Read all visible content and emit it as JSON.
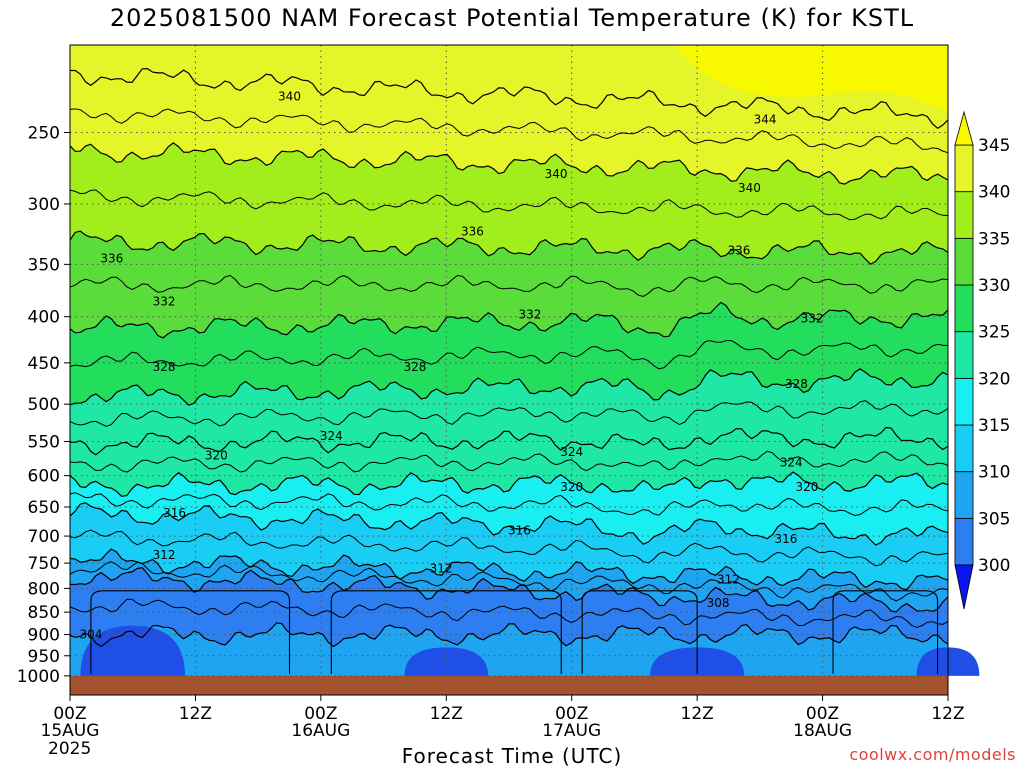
{
  "title": "2025081500 NAM Forecast Potential Temperature (K) for KSTL",
  "xlabel": "Forecast Time (UTC)",
  "credit": "coolwx.com/models",
  "year_label": "2025",
  "chart_data": {
    "type": "heatmap",
    "title": "2025081500 NAM Forecast Potential Temperature (K) for KSTL",
    "xlabel": "Forecast Time (UTC)",
    "ylabel": "",
    "x_hours_range": [
      0,
      84
    ],
    "y_pressure_range": [
      1050,
      200
    ],
    "y_scale": "log",
    "x_ticks": [
      {
        "hour": 0,
        "line1": "00Z",
        "line2": "15AUG"
      },
      {
        "hour": 12,
        "line1": "12Z",
        "line2": ""
      },
      {
        "hour": 24,
        "line1": "00Z",
        "line2": "16AUG"
      },
      {
        "hour": 36,
        "line1": "12Z",
        "line2": ""
      },
      {
        "hour": 48,
        "line1": "00Z",
        "line2": "17AUG"
      },
      {
        "hour": 60,
        "line1": "12Z",
        "line2": ""
      },
      {
        "hour": 72,
        "line1": "00Z",
        "line2": "18AUG"
      },
      {
        "hour": 84,
        "line1": "12Z",
        "line2": ""
      }
    ],
    "y_ticks": [
      250,
      300,
      350,
      400,
      450,
      500,
      550,
      600,
      650,
      700,
      750,
      800,
      850,
      900,
      950,
      1000
    ],
    "grid": true,
    "colorbar": {
      "levels": [
        300,
        305,
        310,
        315,
        320,
        325,
        330,
        335,
        340,
        345
      ],
      "colors": [
        "#1f4fe6",
        "#2d7ef0",
        "#1fa4f2",
        "#19cdf5",
        "#19eef0",
        "#1fe7a5",
        "#23de5c",
        "#5adc3a",
        "#a2ee1c",
        "#e6f42a",
        "#f8f800"
      ],
      "under_color": "#0b14ee",
      "over_color": "#f8f800",
      "extend": "both"
    },
    "ground_pressure": 1000,
    "ground_color": "#a2522d",
    "series": [
      {
        "value": 304,
        "p_start": 900,
        "p_end": 900
      },
      {
        "value": 308,
        "p_start": 775,
        "p_end": 835
      },
      {
        "value": 312,
        "p_start": 745,
        "p_end": 785
      },
      {
        "value": 316,
        "p_start": 660,
        "p_end": 700
      },
      {
        "value": 320,
        "p_start": 615,
        "p_end": 610
      },
      {
        "value": 324,
        "p_start": 552,
        "p_end": 545
      },
      {
        "value": 328,
        "p_start": 490,
        "p_end": 468
      },
      {
        "value": 332,
        "p_start": 412,
        "p_end": 400
      },
      {
        "value": 336,
        "p_start": 330,
        "p_end": 340
      },
      {
        "value": 340,
        "p_start": 262,
        "p_end": 280
      },
      {
        "value": 344,
        "p_start": 215,
        "p_end": 240
      }
    ],
    "contour_labels": [
      {
        "text": "304",
        "hour": 2,
        "pressure": 900
      },
      {
        "text": "308",
        "hour": 62,
        "pressure": 830
      },
      {
        "text": "312",
        "hour": 9,
        "pressure": 735
      },
      {
        "text": "312",
        "hour": 35.5,
        "pressure": 760
      },
      {
        "text": "312",
        "hour": 63,
        "pressure": 782
      },
      {
        "text": "316",
        "hour": 10,
        "pressure": 660
      },
      {
        "text": "316",
        "hour": 43,
        "pressure": 690
      },
      {
        "text": "316",
        "hour": 68.5,
        "pressure": 705
      },
      {
        "text": "320",
        "hour": 14,
        "pressure": 570
      },
      {
        "text": "320",
        "hour": 48,
        "pressure": 618
      },
      {
        "text": "320",
        "hour": 70.5,
        "pressure": 618
      },
      {
        "text": "324",
        "hour": 25,
        "pressure": 542
      },
      {
        "text": "324",
        "hour": 48,
        "pressure": 565
      },
      {
        "text": "324",
        "hour": 69,
        "pressure": 580
      },
      {
        "text": "328",
        "hour": 9,
        "pressure": 455
      },
      {
        "text": "328",
        "hour": 33,
        "pressure": 455
      },
      {
        "text": "328",
        "hour": 69.5,
        "pressure": 475
      },
      {
        "text": "332",
        "hour": 9,
        "pressure": 385
      },
      {
        "text": "332",
        "hour": 44,
        "pressure": 398
      },
      {
        "text": "332",
        "hour": 71,
        "pressure": 402
      },
      {
        "text": "336",
        "hour": 4,
        "pressure": 345
      },
      {
        "text": "336",
        "hour": 38.5,
        "pressure": 322
      },
      {
        "text": "336",
        "hour": 64,
        "pressure": 338
      },
      {
        "text": "340",
        "hour": 21,
        "pressure": 228
      },
      {
        "text": "340",
        "hour": 46.5,
        "pressure": 278
      },
      {
        "text": "340",
        "hour": 65,
        "pressure": 288
      },
      {
        "text": "344",
        "hour": 66.5,
        "pressure": 242
      }
    ]
  }
}
